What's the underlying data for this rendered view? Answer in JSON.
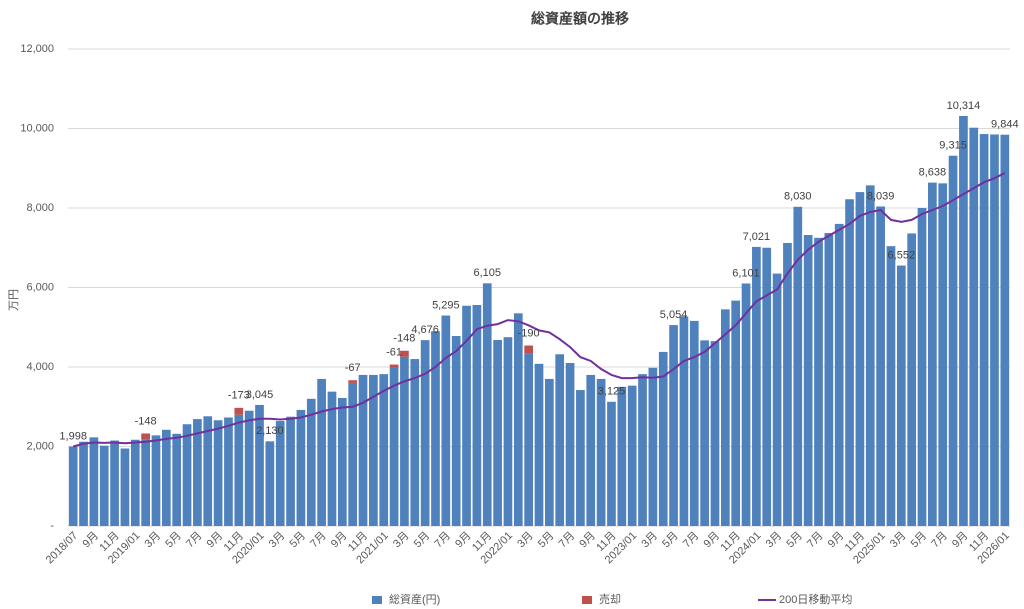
{
  "chart_data": {
    "type": "bar",
    "title": "総資産額の推移",
    "y_label": "万円",
    "categories": [
      "2018/07",
      null,
      "9月",
      null,
      "11月",
      null,
      "2019/01",
      null,
      "3月",
      null,
      "5月",
      null,
      "7月",
      null,
      "9月",
      null,
      "11月",
      null,
      "2020/01",
      null,
      "3月",
      null,
      "5月",
      null,
      "7月",
      null,
      "9月",
      null,
      "11月",
      null,
      "2021/01",
      null,
      "3月",
      null,
      "5月",
      null,
      "7月",
      null,
      "9月",
      null,
      "11月",
      null,
      "2022/01",
      null,
      "3月",
      null,
      "5月",
      null,
      "7月",
      null,
      "9月",
      null,
      "11月",
      null,
      "2023/01",
      null,
      "3月",
      null,
      "5月",
      null,
      "7月",
      null,
      "9月",
      null,
      "11月",
      null,
      "2024/01",
      null,
      "3月",
      null,
      "5月",
      null,
      "7月",
      null,
      "9月",
      null,
      "11月",
      null,
      "2025/01",
      null,
      "3月",
      null,
      "5月",
      null,
      "7月",
      null,
      "9月",
      null,
      "11月",
      null,
      "2026/01"
    ],
    "series": [
      {
        "name": "総資産(円)",
        "type": "bar",
        "color": "#4f81bd",
        "values": [
          1998,
          2120,
          2230,
          2020,
          2150,
          1950,
          2170,
          2180,
          2280,
          2420,
          2320,
          2560,
          2690,
          2760,
          2660,
          2730,
          2800,
          2900,
          3045,
          2130,
          2640,
          2750,
          2920,
          3200,
          3700,
          3380,
          3220,
          3600,
          3800,
          3800,
          3820,
          4000,
          4260,
          4200,
          4676,
          4900,
          5295,
          4780,
          5540,
          5560,
          6105,
          4680,
          4750,
          5350,
          4350,
          4080,
          3700,
          4320,
          4100,
          3420,
          3800,
          3700,
          3125,
          3500,
          3530,
          3820,
          3980,
          4380,
          5054,
          5270,
          5160,
          4670,
          4650,
          5450,
          5670,
          6101,
          7021,
          7000,
          6350,
          7120,
          8030,
          7320,
          7250,
          7370,
          7600,
          8220,
          8400,
          8570,
          8039,
          7040,
          6552,
          7360,
          8000,
          8638,
          8620,
          9315,
          10314,
          10020,
          9860,
          9850,
          9844
        ],
        "value_labels": [
          "1,998",
          null,
          null,
          null,
          null,
          null,
          null,
          null,
          null,
          null,
          null,
          null,
          null,
          null,
          null,
          null,
          null,
          null,
          "3,045",
          "2,130",
          null,
          null,
          null,
          null,
          null,
          null,
          null,
          null,
          null,
          null,
          null,
          null,
          null,
          null,
          "4,676",
          null,
          "5,295",
          null,
          null,
          null,
          "6,105",
          null,
          null,
          null,
          null,
          null,
          null,
          null,
          null,
          null,
          null,
          null,
          "3,125",
          null,
          null,
          null,
          null,
          null,
          "5,054",
          null,
          null,
          null,
          null,
          null,
          null,
          "6,101",
          "7,021",
          null,
          null,
          null,
          "8,030",
          null,
          null,
          null,
          null,
          null,
          null,
          null,
          "8,039",
          null,
          "6,552",
          null,
          null,
          "8,638",
          null,
          "9,315",
          "10,314",
          null,
          null,
          null,
          "9,844"
        ]
      },
      {
        "name": "売却",
        "type": "stack",
        "color": "#c0504d",
        "values": [
          null,
          null,
          null,
          null,
          null,
          null,
          null,
          148,
          null,
          null,
          null,
          null,
          null,
          null,
          null,
          null,
          173,
          null,
          null,
          null,
          null,
          null,
          null,
          null,
          null,
          null,
          null,
          67,
          null,
          null,
          null,
          61,
          148,
          null,
          null,
          null,
          null,
          null,
          null,
          null,
          null,
          null,
          null,
          null,
          190,
          null,
          null,
          null,
          null,
          null,
          null,
          null,
          null,
          null,
          null,
          null,
          null,
          null,
          null,
          null,
          null,
          null,
          null,
          null,
          null,
          null,
          null,
          null,
          null,
          null,
          null,
          null,
          null,
          null,
          null,
          null,
          null,
          null,
          null,
          null,
          null,
          null,
          null,
          null,
          null,
          null,
          null,
          null,
          null,
          null,
          null
        ],
        "value_labels": [
          null,
          null,
          null,
          null,
          null,
          null,
          null,
          "-148",
          null,
          null,
          null,
          null,
          null,
          null,
          null,
          null,
          "-173",
          null,
          null,
          null,
          null,
          null,
          null,
          null,
          null,
          null,
          null,
          "-67",
          null,
          null,
          null,
          "-61",
          "-148",
          null,
          null,
          null,
          null,
          null,
          null,
          null,
          null,
          null,
          null,
          null,
          "-190",
          null,
          null,
          null,
          null,
          null,
          null,
          null,
          null,
          null,
          null,
          null,
          null,
          null,
          null,
          null,
          null,
          null,
          null,
          null,
          null,
          null,
          null,
          null,
          null,
          null,
          null,
          null,
          null,
          null,
          null,
          null,
          null,
          null,
          null,
          null,
          null,
          null,
          null,
          null,
          null,
          null,
          null,
          null,
          null,
          null,
          null
        ]
      },
      {
        "name": "200日移動平均",
        "type": "line",
        "color": "#7030a0",
        "values": [
          2000,
          2070,
          2100,
          2090,
          2100,
          2080,
          2100,
          2120,
          2150,
          2190,
          2220,
          2270,
          2330,
          2390,
          2450,
          2520,
          2600,
          2660,
          2700,
          2700,
          2680,
          2700,
          2730,
          2800,
          2880,
          2940,
          2980,
          3000,
          3100,
          3250,
          3400,
          3530,
          3640,
          3720,
          3830,
          4000,
          4230,
          4400,
          4660,
          4950,
          5040,
          5080,
          5180,
          5150,
          5050,
          4920,
          4870,
          4700,
          4500,
          4250,
          4150,
          3950,
          3800,
          3720,
          3720,
          3740,
          3730,
          3760,
          3950,
          4150,
          4250,
          4380,
          4600,
          4820,
          5050,
          5350,
          5650,
          5800,
          5950,
          6350,
          6700,
          6950,
          7150,
          7300,
          7450,
          7600,
          7800,
          7900,
          7950,
          7700,
          7650,
          7700,
          7850,
          7950,
          8050,
          8200,
          8350,
          8500,
          8650,
          8750,
          8880
        ]
      }
    ],
    "ylim": [
      0,
      12000
    ],
    "yticks": [
      {
        "value": 0,
        "label": "-"
      },
      {
        "value": 2000,
        "label": "2,000"
      },
      {
        "value": 4000,
        "label": "4,000"
      },
      {
        "value": 6000,
        "label": "6,000"
      },
      {
        "value": 8000,
        "label": "8,000"
      },
      {
        "value": 10000,
        "label": "10,000"
      },
      {
        "value": 12000,
        "label": "12,000"
      }
    ],
    "grid": true,
    "legend": "bottom"
  }
}
